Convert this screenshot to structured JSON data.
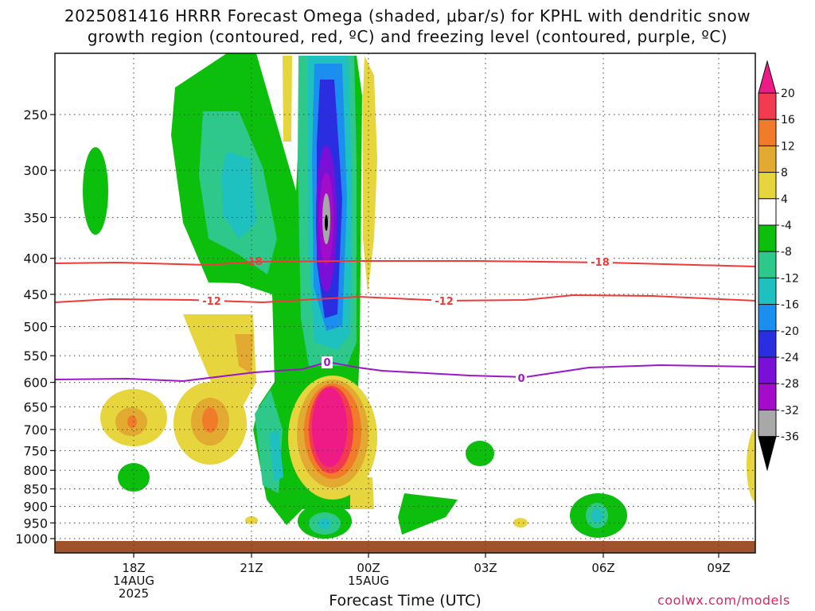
{
  "chart_data": {
    "type": "heatmap",
    "title_line1": "2025081416 HRRR Forecast Omega (shaded, μbar/s) for KPHL with dendritic snow",
    "title_line2": "growth region (contoured, red, ºC) and freezing level (contoured, purple, ºC)",
    "xlabel": "Forecast Time (UTC)",
    "y_ticks": [
      "250",
      "300",
      "350",
      "400",
      "450",
      "500",
      "550",
      "600",
      "650",
      "700",
      "750",
      "800",
      "850",
      "900",
      "950",
      "1000"
    ],
    "x_ticks": [
      {
        "lines": [
          "18Z",
          "14AUG",
          "2025"
        ]
      },
      {
        "lines": [
          "21Z"
        ]
      },
      {
        "lines": [
          "00Z",
          "15AUG"
        ]
      },
      {
        "lines": [
          "03Z"
        ]
      },
      {
        "lines": [
          "06Z"
        ]
      },
      {
        "lines": [
          "09Z"
        ]
      }
    ],
    "colorbar": {
      "labels": [
        "20",
        "16",
        "12",
        "8",
        "4",
        "-4",
        "-8",
        "-12",
        "-16",
        "-20",
        "-24",
        "-28",
        "-32",
        "-36"
      ],
      "colors": [
        "#f23a50",
        "#f07b29",
        "#e3aa32",
        "#e6d53d",
        "#ffffff",
        "#0dbf0d",
        "#2ec98a",
        "#1fc0c0",
        "#1b8ff0",
        "#2a2ee0",
        "#7a10d8",
        "#a30cc8",
        "#a8a8a8",
        "#000000"
      ],
      "top_color": "#ee1a86"
    },
    "contours": [
      {
        "name": "-18",
        "color": "#f03a3a",
        "labels": [
          "-18",
          "-18"
        ]
      },
      {
        "name": "-12",
        "color": "#f03a3a",
        "labels": [
          "-12",
          "-12"
        ]
      },
      {
        "name": "0",
        "color": "#9c17c9",
        "labels": [
          "0",
          "0"
        ]
      }
    ],
    "ground_color": "#a0522d"
  },
  "credit": "coolwx.com/models"
}
